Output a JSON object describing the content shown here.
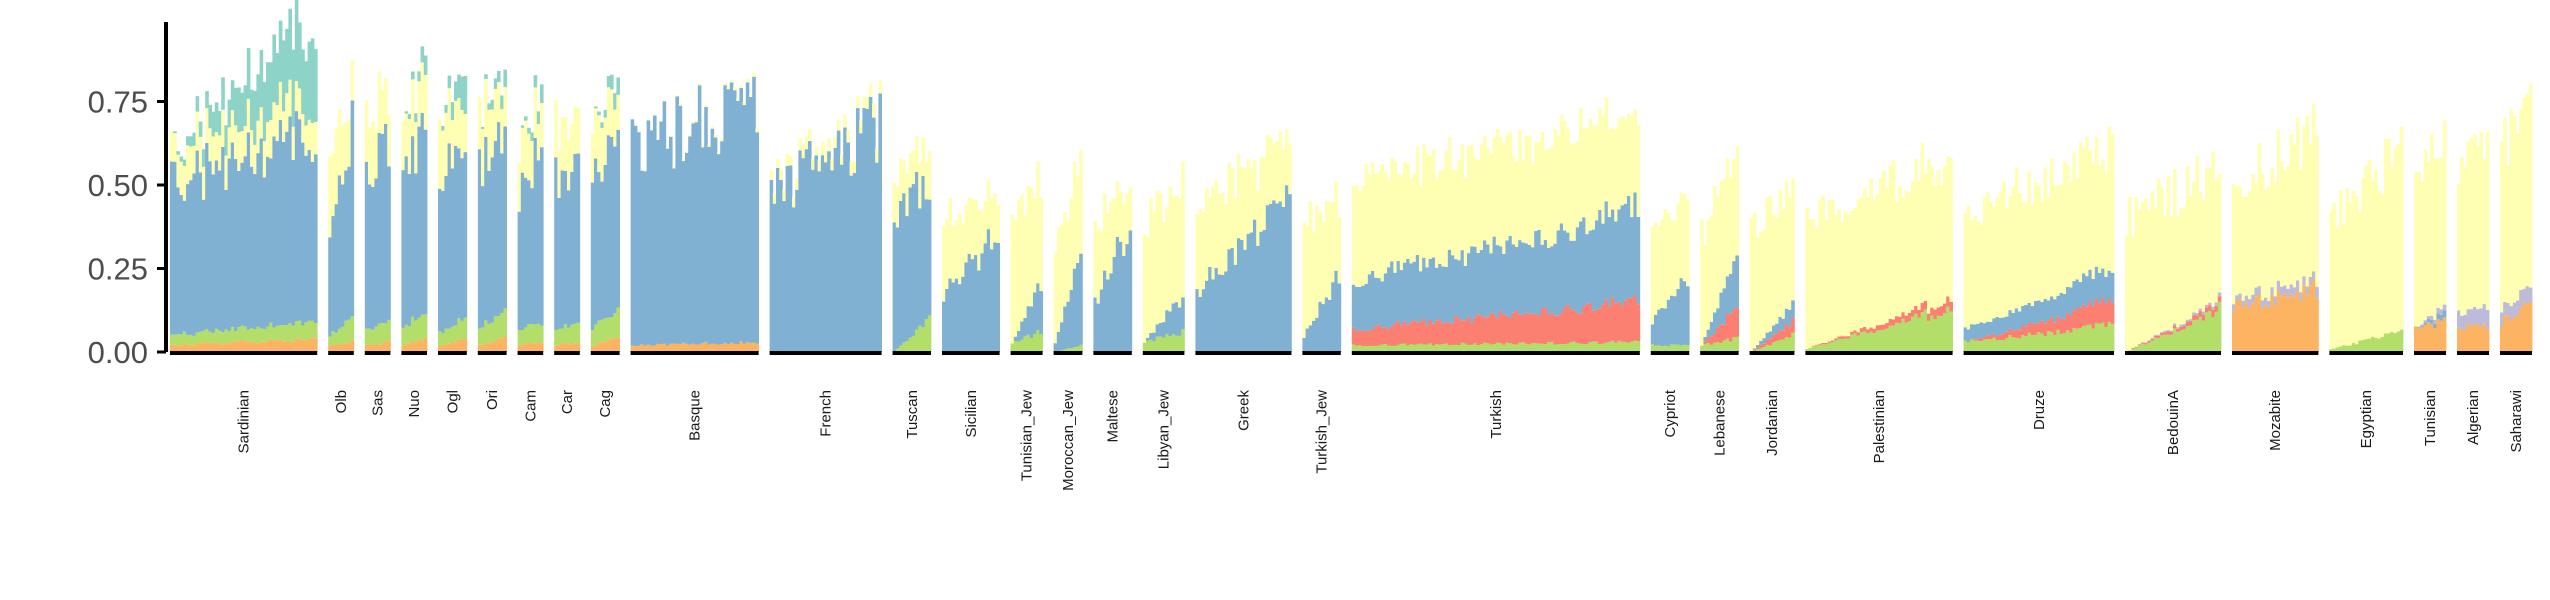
{
  "chart_data": {
    "type": "bar",
    "stacked": true,
    "title": "",
    "xlabel": "",
    "ylabel": "",
    "ylim": [
      0,
      1.0
    ],
    "yticks": [
      0.0,
      0.25,
      0.5,
      0.75
    ],
    "ytick_labels": [
      "0.00",
      "0.25",
      "0.50",
      "0.75"
    ],
    "grid": false,
    "legend": "none",
    "component_colors": {
      "orange": "#fdb462",
      "green": "#b3de69",
      "red": "#fb8072",
      "blue": "#80b1d3",
      "purple": "#bebada",
      "yellow": "#ffffb3",
      "teal": "#8dd3c7"
    },
    "component_order": [
      "orange",
      "green",
      "red",
      "blue",
      "purple",
      "yellow",
      "teal"
    ],
    "populations": [
      {
        "label": "Sardinian",
        "n": 46,
        "start": {
          "orange": 0.02,
          "green": 0.03,
          "red": 0.0,
          "blue": 0.45,
          "purple": 0.0,
          "yellow": 0.1,
          "teal": 0.0
        },
        "end": {
          "orange": 0.04,
          "green": 0.05,
          "red": 0.0,
          "blue": 0.56,
          "purple": 0.0,
          "yellow": 0.1,
          "teal": 0.25
        }
      },
      {
        "label": "Olb",
        "n": 8,
        "start": {
          "orange": 0.02,
          "green": 0.03,
          "red": 0.0,
          "blue": 0.33,
          "purple": 0.0,
          "yellow": 0.24,
          "teal": 0.0
        },
        "end": {
          "orange": 0.03,
          "green": 0.07,
          "red": 0.0,
          "blue": 0.55,
          "purple": 0.0,
          "yellow": 0.12,
          "teal": 0.0
        }
      },
      {
        "label": "Sas",
        "n": 8,
        "start": {
          "orange": 0.02,
          "green": 0.05,
          "red": 0.0,
          "blue": 0.45,
          "purple": 0.0,
          "yellow": 0.18,
          "teal": 0.0
        },
        "end": {
          "orange": 0.03,
          "green": 0.06,
          "red": 0.0,
          "blue": 0.53,
          "purple": 0.0,
          "yellow": 0.14,
          "teal": 0.0
        }
      },
      {
        "label": "Nuo",
        "n": 8,
        "start": {
          "orange": 0.02,
          "green": 0.05,
          "red": 0.0,
          "blue": 0.5,
          "purple": 0.0,
          "yellow": 0.15,
          "teal": 0.0
        },
        "end": {
          "orange": 0.04,
          "green": 0.08,
          "red": 0.0,
          "blue": 0.52,
          "purple": 0.0,
          "yellow": 0.14,
          "teal": 0.05
        }
      },
      {
        "label": "Ogl",
        "n": 9,
        "start": {
          "orange": 0.02,
          "green": 0.04,
          "red": 0.0,
          "blue": 0.45,
          "purple": 0.0,
          "yellow": 0.2,
          "teal": 0.0
        },
        "end": {
          "orange": 0.04,
          "green": 0.06,
          "red": 0.0,
          "blue": 0.55,
          "purple": 0.0,
          "yellow": 0.12,
          "teal": 0.1
        }
      },
      {
        "label": "Ori",
        "n": 9,
        "start": {
          "orange": 0.02,
          "green": 0.05,
          "red": 0.0,
          "blue": 0.5,
          "purple": 0.0,
          "yellow": 0.18,
          "teal": 0.0
        },
        "end": {
          "orange": 0.04,
          "green": 0.08,
          "red": 0.0,
          "blue": 0.5,
          "purple": 0.0,
          "yellow": 0.12,
          "teal": 0.05
        }
      },
      {
        "label": "Cam",
        "n": 8,
        "start": {
          "orange": 0.02,
          "green": 0.04,
          "red": 0.0,
          "blue": 0.4,
          "purple": 0.0,
          "yellow": 0.16,
          "teal": 0.0
        },
        "end": {
          "orange": 0.03,
          "green": 0.06,
          "red": 0.0,
          "blue": 0.52,
          "purple": 0.0,
          "yellow": 0.12,
          "teal": 0.05
        }
      },
      {
        "label": "Car",
        "n": 8,
        "start": {
          "orange": 0.02,
          "green": 0.04,
          "red": 0.0,
          "blue": 0.45,
          "purple": 0.0,
          "yellow": 0.16,
          "teal": 0.0
        },
        "end": {
          "orange": 0.03,
          "green": 0.07,
          "red": 0.0,
          "blue": 0.5,
          "purple": 0.0,
          "yellow": 0.12,
          "teal": 0.0
        }
      },
      {
        "label": "Cag",
        "n": 9,
        "start": {
          "orange": 0.02,
          "green": 0.05,
          "red": 0.0,
          "blue": 0.45,
          "purple": 0.0,
          "yellow": 0.16,
          "teal": 0.0
        },
        "end": {
          "orange": 0.04,
          "green": 0.08,
          "red": 0.0,
          "blue": 0.5,
          "purple": 0.0,
          "yellow": 0.12,
          "teal": 0.05
        }
      },
      {
        "label": "Basque",
        "n": 40,
        "start": {
          "orange": 0.02,
          "green": 0.0,
          "red": 0.0,
          "blue": 0.58,
          "purple": 0.0,
          "yellow": 0.0,
          "teal": 0.0
        },
        "end": {
          "orange": 0.03,
          "green": 0.0,
          "red": 0.0,
          "blue": 0.73,
          "purple": 0.0,
          "yellow": 0.01,
          "teal": 0.0
        }
      },
      {
        "label": "French",
        "n": 35,
        "start": {
          "orange": 0.0,
          "green": 0.0,
          "red": 0.0,
          "blue": 0.47,
          "purple": 0.0,
          "yellow": 0.03,
          "teal": 0.0
        },
        "end": {
          "orange": 0.0,
          "green": 0.0,
          "red": 0.0,
          "blue": 0.68,
          "purple": 0.0,
          "yellow": 0.04,
          "teal": 0.0
        }
      },
      {
        "label": "Tuscan",
        "n": 12,
        "start": {
          "orange": 0.0,
          "green": 0.0,
          "red": 0.0,
          "blue": 0.41,
          "purple": 0.0,
          "yellow": 0.11,
          "teal": 0.0
        },
        "end": {
          "orange": 0.0,
          "green": 0.1,
          "red": 0.0,
          "blue": 0.42,
          "purple": 0.0,
          "yellow": 0.13,
          "teal": 0.0
        }
      },
      {
        "label": "Sicilian",
        "n": 18,
        "start": {
          "orange": 0.0,
          "green": 0.0,
          "red": 0.0,
          "blue": 0.18,
          "purple": 0.0,
          "yellow": 0.22,
          "teal": 0.0
        },
        "end": {
          "orange": 0.0,
          "green": 0.0,
          "red": 0.0,
          "blue": 0.35,
          "purple": 0.0,
          "yellow": 0.12,
          "teal": 0.0
        }
      },
      {
        "label": "Tunisian_Jew",
        "n": 10,
        "start": {
          "orange": 0.0,
          "green": 0.03,
          "red": 0.0,
          "blue": 0.0,
          "purple": 0.0,
          "yellow": 0.35,
          "teal": 0.0
        },
        "end": {
          "orange": 0.0,
          "green": 0.06,
          "red": 0.0,
          "blue": 0.14,
          "purple": 0.0,
          "yellow": 0.31,
          "teal": 0.0
        }
      },
      {
        "label": "Moroccan_Jew",
        "n": 9,
        "start": {
          "orange": 0.0,
          "green": 0.0,
          "red": 0.0,
          "blue": 0.03,
          "purple": 0.0,
          "yellow": 0.28,
          "teal": 0.0
        },
        "end": {
          "orange": 0.0,
          "green": 0.02,
          "red": 0.0,
          "blue": 0.27,
          "purple": 0.0,
          "yellow": 0.28,
          "teal": 0.0
        }
      },
      {
        "label": "Maltese",
        "n": 12,
        "start": {
          "orange": 0.0,
          "green": 0.0,
          "red": 0.0,
          "blue": 0.15,
          "purple": 0.0,
          "yellow": 0.22,
          "teal": 0.0
        },
        "end": {
          "orange": 0.0,
          "green": 0.0,
          "red": 0.0,
          "blue": 0.38,
          "purple": 0.0,
          "yellow": 0.15,
          "teal": 0.0
        }
      },
      {
        "label": "Libyan_Jew",
        "n": 13,
        "start": {
          "orange": 0.0,
          "green": 0.03,
          "red": 0.0,
          "blue": 0.0,
          "purple": 0.0,
          "yellow": 0.36,
          "teal": 0.0
        },
        "end": {
          "orange": 0.0,
          "green": 0.06,
          "red": 0.0,
          "blue": 0.11,
          "purple": 0.0,
          "yellow": 0.35,
          "teal": 0.0
        }
      },
      {
        "label": "Greek",
        "n": 30,
        "start": {
          "orange": 0.0,
          "green": 0.0,
          "red": 0.0,
          "blue": 0.19,
          "purple": 0.0,
          "yellow": 0.26,
          "teal": 0.0
        },
        "end": {
          "orange": 0.0,
          "green": 0.0,
          "red": 0.0,
          "blue": 0.45,
          "purple": 0.0,
          "yellow": 0.17,
          "teal": 0.0
        }
      },
      {
        "label": "Turkish_Jew",
        "n": 12,
        "start": {
          "orange": 0.0,
          "green": 0.0,
          "red": 0.0,
          "blue": 0.05,
          "purple": 0.0,
          "yellow": 0.35,
          "teal": 0.0
        },
        "end": {
          "orange": 0.0,
          "green": 0.0,
          "red": 0.0,
          "blue": 0.24,
          "purple": 0.0,
          "yellow": 0.24,
          "teal": 0.0
        }
      },
      {
        "label": "Turkish",
        "n": 90,
        "start": {
          "orange": 0.0,
          "green": 0.02,
          "red": 0.05,
          "blue": 0.15,
          "purple": 0.0,
          "yellow": 0.31,
          "teal": 0.0
        },
        "end": {
          "orange": 0.0,
          "green": 0.03,
          "red": 0.12,
          "blue": 0.27,
          "purple": 0.0,
          "yellow": 0.29,
          "teal": 0.0
        }
      },
      {
        "label": "Cypriot",
        "n": 12,
        "start": {
          "orange": 0.0,
          "green": 0.02,
          "red": 0.0,
          "blue": 0.07,
          "purple": 0.0,
          "yellow": 0.27,
          "teal": 0.0
        },
        "end": {
          "orange": 0.0,
          "green": 0.02,
          "red": 0.0,
          "blue": 0.2,
          "purple": 0.0,
          "yellow": 0.24,
          "teal": 0.0
        }
      },
      {
        "label": "Lebanese",
        "n": 12,
        "start": {
          "orange": 0.0,
          "green": 0.02,
          "red": 0.0,
          "blue": 0.0,
          "purple": 0.0,
          "yellow": 0.33,
          "teal": 0.0
        },
        "end": {
          "orange": 0.0,
          "green": 0.04,
          "red": 0.09,
          "blue": 0.15,
          "purple": 0.0,
          "yellow": 0.32,
          "teal": 0.0
        }
      },
      {
        "label": "Jordanian",
        "n": 14,
        "start": {
          "orange": 0.0,
          "green": 0.0,
          "red": 0.0,
          "blue": 0.0,
          "purple": 0.0,
          "yellow": 0.35,
          "teal": 0.0
        },
        "end": {
          "orange": 0.0,
          "green": 0.05,
          "red": 0.04,
          "blue": 0.05,
          "purple": 0.0,
          "yellow": 0.36,
          "teal": 0.0
        }
      },
      {
        "label": "Palestinian",
        "n": 46,
        "start": {
          "orange": 0.0,
          "green": 0.01,
          "red": 0.0,
          "blue": 0.0,
          "purple": 0.0,
          "yellow": 0.39,
          "teal": 0.0
        },
        "end": {
          "orange": 0.0,
          "green": 0.13,
          "red": 0.03,
          "blue": 0.0,
          "purple": 0.0,
          "yellow": 0.42,
          "teal": 0.0
        }
      },
      {
        "label": "Druze",
        "n": 47,
        "start": {
          "orange": 0.0,
          "green": 0.03,
          "red": 0.0,
          "blue": 0.04,
          "purple": 0.0,
          "yellow": 0.35,
          "teal": 0.0
        },
        "end": {
          "orange": 0.0,
          "green": 0.08,
          "red": 0.07,
          "blue": 0.09,
          "purple": 0.0,
          "yellow": 0.37,
          "teal": 0.0
        }
      },
      {
        "label": "BedouinA",
        "n": 30,
        "start": {
          "orange": 0.0,
          "green": 0.0,
          "red": 0.0,
          "blue": 0.0,
          "purple": 0.0,
          "yellow": 0.4,
          "teal": 0.0
        },
        "end": {
          "orange": 0.0,
          "green": 0.13,
          "red": 0.02,
          "blue": 0.0,
          "purple": 0.01,
          "yellow": 0.4,
          "teal": 0.0
        }
      },
      {
        "label": "Mozabite",
        "n": 27,
        "start": {
          "orange": 0.13,
          "green": 0.0,
          "red": 0.0,
          "blue": 0.0,
          "purple": 0.02,
          "yellow": 0.33,
          "teal": 0.0
        },
        "end": {
          "orange": 0.19,
          "green": 0.0,
          "red": 0.0,
          "blue": 0.0,
          "purple": 0.03,
          "yellow": 0.47,
          "teal": 0.0
        }
      },
      {
        "label": "Egyptian",
        "n": 23,
        "start": {
          "orange": 0.0,
          "green": 0.01,
          "red": 0.0,
          "blue": 0.0,
          "purple": 0.0,
          "yellow": 0.4,
          "teal": 0.0
        },
        "end": {
          "orange": 0.0,
          "green": 0.06,
          "red": 0.0,
          "blue": 0.0,
          "purple": 0.0,
          "yellow": 0.53,
          "teal": 0.0
        }
      },
      {
        "label": "Tunisian",
        "n": 10,
        "start": {
          "orange": 0.07,
          "green": 0.0,
          "red": 0.0,
          "blue": 0.0,
          "purple": 0.0,
          "yellow": 0.43,
          "teal": 0.0
        },
        "end": {
          "orange": 0.09,
          "green": 0.0,
          "red": 0.0,
          "blue": 0.02,
          "purple": 0.02,
          "yellow": 0.55,
          "teal": 0.0
        }
      },
      {
        "label": "Algerian",
        "n": 10,
        "start": {
          "orange": 0.07,
          "green": 0.0,
          "red": 0.0,
          "blue": 0.0,
          "purple": 0.05,
          "yellow": 0.42,
          "teal": 0.0
        },
        "end": {
          "orange": 0.08,
          "green": 0.0,
          "red": 0.0,
          "blue": 0.0,
          "purple": 0.05,
          "yellow": 0.47,
          "teal": 0.0
        }
      },
      {
        "label": "Saharawi",
        "n": 10,
        "start": {
          "orange": 0.09,
          "green": 0.0,
          "red": 0.0,
          "blue": 0.0,
          "purple": 0.04,
          "yellow": 0.48,
          "teal": 0.0
        },
        "end": {
          "orange": 0.14,
          "green": 0.0,
          "red": 0.0,
          "blue": 0.0,
          "purple": 0.05,
          "yellow": 0.55,
          "teal": 0.0
        }
      }
    ]
  }
}
